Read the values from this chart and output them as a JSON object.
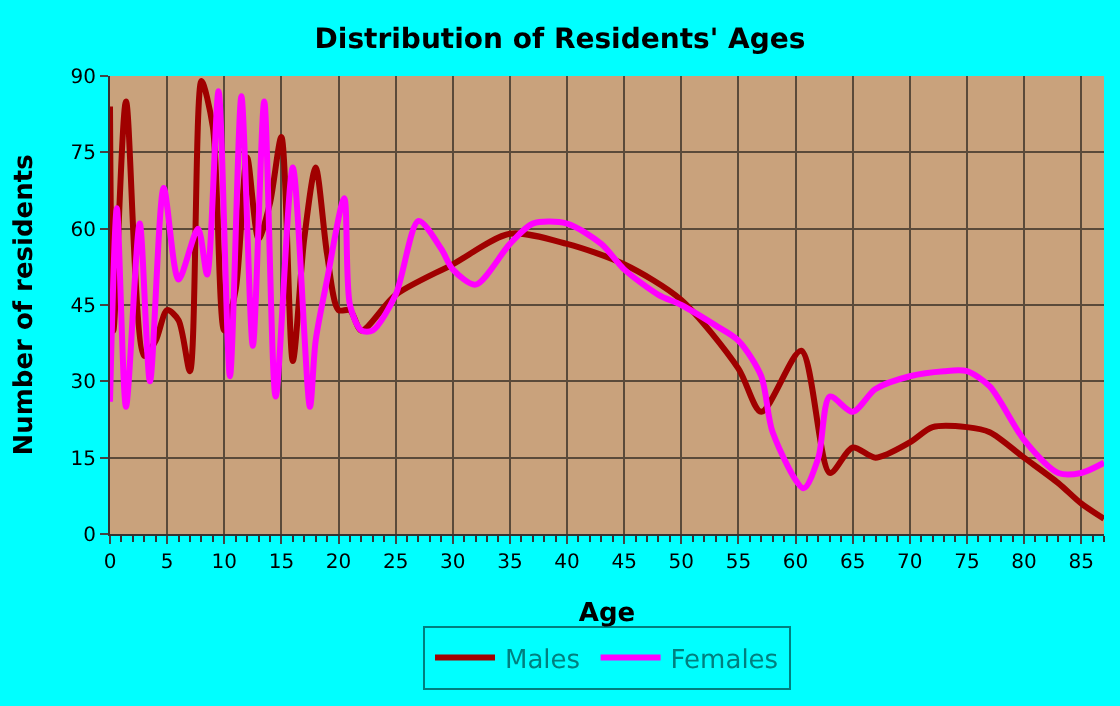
{
  "chart_data": {
    "type": "line",
    "title": "Distribution of Residents' Ages",
    "xlabel": "Age",
    "ylabel": "Number of residents",
    "xlim": [
      0,
      87
    ],
    "xticks": [
      0,
      5,
      10,
      15,
      20,
      25,
      30,
      35,
      40,
      45,
      50,
      55,
      60,
      65,
      70,
      75,
      80,
      85
    ],
    "ylim": [
      0,
      90
    ],
    "yticks": [
      0,
      15,
      30,
      45,
      60,
      75,
      90
    ],
    "grid": true,
    "legend": "bottom",
    "series": [
      {
        "name": "Males",
        "color": "#a00000",
        "x": [
          0,
          0.3,
          1.4,
          3,
          4,
          5,
          6,
          7,
          8,
          9,
          10,
          11,
          12,
          13,
          14,
          15,
          16,
          17,
          18,
          19,
          20,
          21,
          22,
          25,
          30,
          35,
          40,
          45,
          50,
          55,
          57,
          60.5,
          63,
          65,
          67,
          70,
          72,
          75,
          77,
          80,
          83,
          85,
          87
        ],
        "values": [
          84,
          40,
          85,
          35,
          38,
          44,
          42,
          32,
          89,
          80,
          40,
          48,
          74,
          58,
          65,
          78,
          34,
          58,
          72,
          55,
          44,
          44,
          40,
          47,
          53,
          59,
          57,
          53,
          46,
          32.5,
          24,
          36,
          12,
          17,
          15,
          18,
          21,
          21,
          20,
          15,
          10,
          6,
          3
        ]
      },
      {
        "name": "Females",
        "color": "#ff00ff",
        "x": [
          0,
          0.6,
          1.4,
          2.6,
          3.5,
          4.7,
          6,
          7.7,
          8.5,
          9.5,
          10.5,
          11.5,
          12.5,
          13.5,
          14.5,
          16,
          17.5,
          18,
          19,
          20.5,
          21,
          22,
          23,
          25,
          27,
          29,
          30,
          32,
          35,
          37,
          40,
          43,
          45,
          48,
          50,
          53,
          55,
          57,
          58,
          60.7,
          62,
          63,
          65,
          67,
          70,
          73,
          75,
          77,
          80,
          83,
          85,
          87
        ],
        "values": [
          26,
          64,
          25,
          61,
          30,
          68,
          50,
          60,
          51,
          87,
          31,
          86,
          37,
          85,
          27,
          72,
          25,
          38,
          50,
          66,
          45,
          40,
          40,
          47,
          61.5,
          56,
          52,
          49,
          57,
          61,
          61,
          57,
          52,
          47,
          45,
          41,
          38,
          31,
          20,
          9,
          15,
          27,
          24,
          28.5,
          31,
          32,
          32,
          29,
          18.5,
          12,
          12,
          14
        ]
      }
    ]
  }
}
